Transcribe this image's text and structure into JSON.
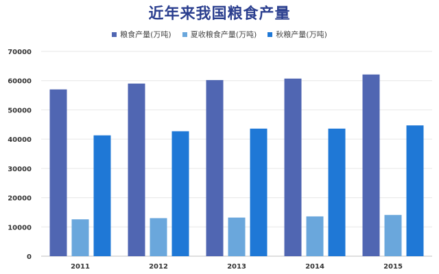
{
  "chart_data": {
    "type": "bar",
    "title": "近年来我国粮食产量",
    "xlabel": "",
    "ylabel": "",
    "categories": [
      "2011",
      "2012",
      "2013",
      "2014",
      "2015"
    ],
    "series": [
      {
        "name": "粮食产量(万吨)",
        "color": "#5066b2",
        "values": [
          57000,
          59000,
          60200,
          60700,
          62100
        ]
      },
      {
        "name": "夏收粮食产量(万吨)",
        "color": "#6aa7dc",
        "values": [
          12600,
          13000,
          13200,
          13600,
          14100
        ]
      },
      {
        "name": "秋粮产量(万吨)",
        "color": "#1f78d6",
        "values": [
          41300,
          42700,
          43600,
          43600,
          44700
        ]
      }
    ],
    "ylim": [
      0,
      70000
    ],
    "yticks": [
      "0",
      "10000",
      "20000",
      "30000",
      "40000",
      "50000",
      "60000",
      "70000"
    ],
    "grid": true,
    "legend_position": "top"
  }
}
